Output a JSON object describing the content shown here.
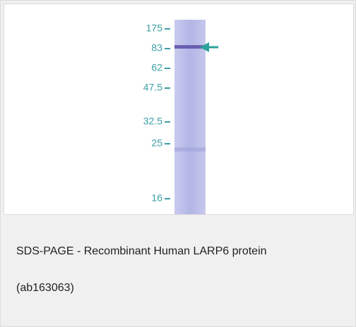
{
  "figure": {
    "markers": [
      "175",
      "83",
      "62",
      "47.5",
      "32.5",
      "25",
      "16"
    ]
  },
  "caption": {
    "lines": [
      "SDS-PAGE - Recombinant Human LARP6 protein",
      "(ab163063)"
    ]
  }
}
